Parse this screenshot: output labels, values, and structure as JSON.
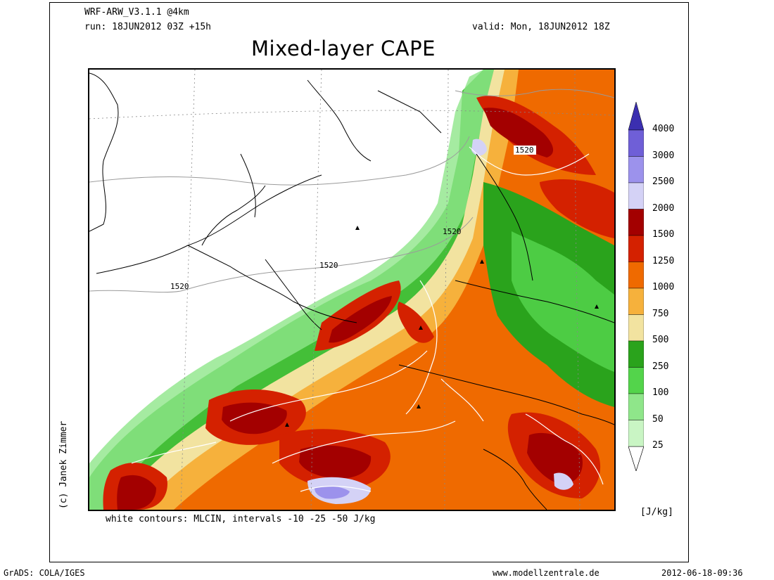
{
  "header": {
    "model": "WRF-ARW_V3.1.1 @4km",
    "run": "run: 18JUN2012 03Z +15h",
    "valid": "valid: Mon, 18JUN2012 18Z",
    "title": "Mixed-layer CAPE"
  },
  "map": {
    "contour_label": "1520",
    "contour_labels": [
      "1520",
      "1520",
      "1520",
      "1520"
    ],
    "field": "Mixed-layer CAPE"
  },
  "legend": {
    "unit": "[J/kg]",
    "levels": [
      "4000",
      "3000",
      "2500",
      "2000",
      "1500",
      "1250",
      "1000",
      "750",
      "500",
      "250",
      "100",
      "50",
      "25"
    ],
    "colors": [
      "#6f5fd7",
      "#9c92ec",
      "#d4d2f6",
      "#a30000",
      "#d42100",
      "#ef6a00",
      "#f6b13c",
      "#f2e3a0",
      "#2aa31c",
      "#53d44b",
      "#8fe68a",
      "#c9f5c4"
    ]
  },
  "footer": {
    "note": "white contours: MLCIN, intervals -10 -25 -50 J/kg",
    "grads": "GrADS: COLA/IGES",
    "website": "www.modellzentrale.de",
    "timestamp": "2012-06-18-09:36",
    "copyright": "(c) Janek Zimmer"
  }
}
